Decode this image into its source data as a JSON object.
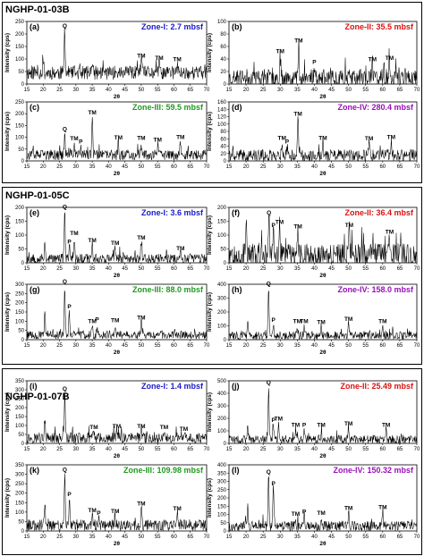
{
  "figure_title": "",
  "chart_data": [
    {
      "id": "a",
      "site": "NGHP-01-03B",
      "panel_label": "(a)",
      "zone": "Zone-I: 2.7 mbsf",
      "zone_color": "#1a1acc",
      "type": "line",
      "xlabel": "2θ",
      "ylabel": "Intensity (cps)",
      "xlim": [
        15,
        70
      ],
      "ylim": [
        0,
        250
      ],
      "xticks": [
        15,
        20,
        25,
        30,
        35,
        40,
        45,
        50,
        55,
        60,
        65,
        70
      ],
      "yticks": [
        0,
        50,
        100,
        150,
        200,
        250
      ],
      "baseline": 45,
      "noise": 28,
      "seed": 11,
      "peaks": [
        {
          "x": 20,
          "y": 100,
          "label": ""
        },
        {
          "x": 26.6,
          "y": 215,
          "label": "Q"
        },
        {
          "x": 35,
          "y": 80,
          "label": ""
        },
        {
          "x": 50,
          "y": 95,
          "label": "TM"
        },
        {
          "x": 55.5,
          "y": 85,
          "label": "TM"
        },
        {
          "x": 61,
          "y": 80,
          "label": "TM"
        }
      ]
    },
    {
      "id": "b",
      "site": "NGHP-01-03B",
      "panel_label": "(b)",
      "zone": "Zone-II: 35.5 mbsf",
      "zone_color": "#dd1111",
      "type": "line",
      "xlabel": "2θ",
      "ylabel": "Intensity (cps)",
      "xlim": [
        15,
        70
      ],
      "ylim": [
        0,
        100
      ],
      "xticks": [
        15,
        20,
        25,
        30,
        35,
        40,
        45,
        50,
        55,
        60,
        65,
        70
      ],
      "yticks": [
        0,
        20,
        40,
        60,
        80,
        100
      ],
      "baseline": 10,
      "noise": 14,
      "seed": 23,
      "peaks": [
        {
          "x": 30,
          "y": 45,
          "label": "TM"
        },
        {
          "x": 35.4,
          "y": 62,
          "label": "TM"
        },
        {
          "x": 40,
          "y": 28,
          "label": "P"
        },
        {
          "x": 57,
          "y": 32,
          "label": "TM"
        },
        {
          "x": 62,
          "y": 34,
          "label": "TM"
        }
      ]
    },
    {
      "id": "c",
      "site": "NGHP-01-03B",
      "panel_label": "(c)",
      "zone": "Zone-III: 59.5 mbsf",
      "zone_color": "#229922",
      "type": "line",
      "xlabel": "2θ",
      "ylabel": "Intensity (cps)",
      "xlim": [
        15,
        70
      ],
      "ylim": [
        0,
        250
      ],
      "xticks": [
        15,
        20,
        25,
        30,
        35,
        40,
        45,
        50,
        55,
        60,
        65,
        70
      ],
      "yticks": [
        0,
        50,
        100,
        150,
        200,
        250
      ],
      "baseline": 25,
      "noise": 22,
      "seed": 37,
      "peaks": [
        {
          "x": 26.6,
          "y": 115,
          "label": "Q"
        },
        {
          "x": 29.5,
          "y": 75,
          "label": "TM"
        },
        {
          "x": 31.5,
          "y": 62,
          "label": "P"
        },
        {
          "x": 35,
          "y": 185,
          "label": "TM"
        },
        {
          "x": 43,
          "y": 80,
          "label": "TM"
        },
        {
          "x": 50,
          "y": 78,
          "label": "TM"
        },
        {
          "x": 55,
          "y": 70,
          "label": "TM"
        },
        {
          "x": 62,
          "y": 82,
          "label": "TM"
        }
      ]
    },
    {
      "id": "d",
      "site": "NGHP-01-03B",
      "panel_label": "(d)",
      "zone": "Zone-IV: 280.4 mbsf",
      "zone_color": "#9911bb",
      "type": "line",
      "xlabel": "2θ",
      "ylabel": "Intensity (cps)",
      "xlim": [
        15,
        70
      ],
      "ylim": [
        0,
        160
      ],
      "xticks": [
        15,
        20,
        25,
        30,
        35,
        40,
        45,
        50,
        55,
        60,
        65,
        70
      ],
      "yticks": [
        0,
        20,
        40,
        60,
        80,
        100,
        120,
        140,
        160
      ],
      "baseline": 15,
      "noise": 16,
      "seed": 41,
      "peaks": [
        {
          "x": 30.5,
          "y": 50,
          "label": "TM"
        },
        {
          "x": 32,
          "y": 40,
          "label": "P"
        },
        {
          "x": 35.2,
          "y": 115,
          "label": "TM"
        },
        {
          "x": 42.5,
          "y": 50,
          "label": "TM"
        },
        {
          "x": 56,
          "y": 48,
          "label": "TM"
        },
        {
          "x": 62.5,
          "y": 52,
          "label": "TM"
        }
      ]
    },
    {
      "id": "e",
      "site": "NGHP-01-05C",
      "panel_label": "(e)",
      "zone": "Zone-I: 3.6 mbsf",
      "zone_color": "#1a1acc",
      "type": "line",
      "xlabel": "2θ",
      "ylabel": "Intensity (cps)",
      "xlim": [
        15,
        70
      ],
      "ylim": [
        0,
        200
      ],
      "xticks": [
        15,
        20,
        25,
        30,
        35,
        40,
        45,
        50,
        55,
        60,
        65,
        70
      ],
      "yticks": [
        0,
        50,
        100,
        150,
        200
      ],
      "baseline": 15,
      "noise": 18,
      "seed": 53,
      "peaks": [
        {
          "x": 20.5,
          "y": 75,
          "label": ""
        },
        {
          "x": 26.6,
          "y": 185,
          "label": "Q"
        },
        {
          "x": 28,
          "y": 60,
          "label": "P"
        },
        {
          "x": 29.5,
          "y": 90,
          "label": "TM"
        },
        {
          "x": 35,
          "y": 65,
          "label": "TM"
        },
        {
          "x": 42,
          "y": 55,
          "label": "TM"
        },
        {
          "x": 50,
          "y": 75,
          "label": "TM"
        },
        {
          "x": 62,
          "y": 35,
          "label": "TM"
        }
      ]
    },
    {
      "id": "f",
      "site": "NGHP-01-05C",
      "panel_label": "(f)",
      "zone": "Zone-II: 36.4 mbsf",
      "zone_color": "#dd1111",
      "type": "line",
      "xlabel": "2θ",
      "ylabel": "Intensity (cps)",
      "xlim": [
        15,
        70
      ],
      "ylim": [
        0,
        200
      ],
      "xticks": [
        15,
        20,
        25,
        30,
        35,
        40,
        45,
        50,
        55,
        60,
        65,
        70
      ],
      "yticks": [
        0,
        50,
        100,
        150,
        200
      ],
      "baseline": 30,
      "noise": 40,
      "seed": 67,
      "peaks": [
        {
          "x": 20,
          "y": 145,
          "label": ""
        },
        {
          "x": 26.7,
          "y": 165,
          "label": "Q"
        },
        {
          "x": 28,
          "y": 120,
          "label": "P"
        },
        {
          "x": 29.8,
          "y": 130,
          "label": "TM"
        },
        {
          "x": 35.2,
          "y": 115,
          "label": "TM"
        },
        {
          "x": 50.2,
          "y": 120,
          "label": "TM"
        },
        {
          "x": 62,
          "y": 95,
          "label": "TM"
        }
      ]
    },
    {
      "id": "g",
      "site": "NGHP-01-05C",
      "panel_label": "(g)",
      "zone": "Zone-III: 88.0 mbsf",
      "zone_color": "#229922",
      "type": "line",
      "xlabel": "2θ",
      "ylabel": "Intensity (cps)",
      "xlim": [
        15,
        70
      ],
      "ylim": [
        0,
        300
      ],
      "xticks": [
        15,
        20,
        25,
        30,
        35,
        40,
        45,
        50,
        55,
        60,
        65,
        70
      ],
      "yticks": [
        0,
        50,
        100,
        150,
        200,
        250,
        300
      ],
      "baseline": 25,
      "noise": 22,
      "seed": 79,
      "peaks": [
        {
          "x": 20.5,
          "y": 140,
          "label": ""
        },
        {
          "x": 26.6,
          "y": 290,
          "label": "Q"
        },
        {
          "x": 28,
          "y": 155,
          "label": "P"
        },
        {
          "x": 35,
          "y": 75,
          "label": "TM"
        },
        {
          "x": 36.5,
          "y": 85,
          "label": "P"
        },
        {
          "x": 42,
          "y": 80,
          "label": "TM"
        },
        {
          "x": 50,
          "y": 95,
          "label": "TM"
        }
      ]
    },
    {
      "id": "h",
      "site": "NGHP-01-05C",
      "panel_label": "(h)",
      "zone": "Zone-IV: 158.0 mbsf",
      "zone_color": "#9911bb",
      "type": "line",
      "xlabel": "2θ",
      "ylabel": "Intensity (cps)",
      "xlim": [
        15,
        70
      ],
      "ylim": [
        0,
        400
      ],
      "xticks": [
        15,
        20,
        25,
        30,
        35,
        40,
        45,
        50,
        55,
        60,
        65,
        70
      ],
      "yticks": [
        0,
        100,
        200,
        300,
        400
      ],
      "baseline": 30,
      "noise": 30,
      "seed": 83,
      "peaks": [
        {
          "x": 20.5,
          "y": 120,
          "label": ""
        },
        {
          "x": 26.6,
          "y": 370,
          "label": "Q"
        },
        {
          "x": 28,
          "y": 110,
          "label": "P"
        },
        {
          "x": 35,
          "y": 100,
          "label": "TM"
        },
        {
          "x": 37,
          "y": 100,
          "label": "TM"
        },
        {
          "x": 42,
          "y": 95,
          "label": "TM"
        },
        {
          "x": 50,
          "y": 115,
          "label": "TM"
        },
        {
          "x": 60,
          "y": 100,
          "label": "TM"
        }
      ]
    },
    {
      "id": "i",
      "site": "NGHP-01-07B",
      "panel_label": "(i)",
      "zone": "Zone-I: 1.4 mbsf",
      "zone_color": "#1a1acc",
      "type": "line",
      "xlabel": "2θ",
      "ylabel": "Intensity (cps)",
      "xlim": [
        15,
        70
      ],
      "ylim": [
        0,
        350
      ],
      "xticks": [
        15,
        20,
        25,
        30,
        35,
        40,
        45,
        50,
        55,
        60,
        65,
        70
      ],
      "yticks": [
        0,
        50,
        100,
        150,
        200,
        250,
        300,
        350
      ],
      "baseline": 30,
      "noise": 30,
      "seed": 97,
      "peaks": [
        {
          "x": 20.5,
          "y": 130,
          "label": ""
        },
        {
          "x": 26.6,
          "y": 280,
          "label": "Q"
        },
        {
          "x": 35.5,
          "y": 65,
          "label": "TM"
        },
        {
          "x": 42.5,
          "y": 70,
          "label": "TM"
        },
        {
          "x": 50,
          "y": 70,
          "label": "TM"
        },
        {
          "x": 57,
          "y": 65,
          "label": "TM"
        },
        {
          "x": 63,
          "y": 55,
          "label": "TM"
        }
      ]
    },
    {
      "id": "j",
      "site": "NGHP-01-07B",
      "panel_label": "(j)",
      "zone": "Zone-II: 25.49 mbsf",
      "zone_color": "#dd1111",
      "type": "line",
      "xlabel": "2θ",
      "ylabel": "Intensity (cps)",
      "xlim": [
        15,
        70
      ],
      "ylim": [
        0,
        500
      ],
      "xticks": [
        15,
        20,
        25,
        30,
        35,
        40,
        45,
        50,
        55,
        60,
        65,
        70
      ],
      "yticks": [
        0,
        100,
        200,
        300,
        400,
        500
      ],
      "baseline": 30,
      "noise": 35,
      "seed": 101,
      "peaks": [
        {
          "x": 20.5,
          "y": 130,
          "label": ""
        },
        {
          "x": 26.6,
          "y": 450,
          "label": "Q"
        },
        {
          "x": 28,
          "y": 150,
          "label": "P"
        },
        {
          "x": 29.5,
          "y": 160,
          "label": "TM"
        },
        {
          "x": 34.5,
          "y": 110,
          "label": "TM"
        },
        {
          "x": 37,
          "y": 110,
          "label": "P"
        },
        {
          "x": 42,
          "y": 110,
          "label": "TM"
        },
        {
          "x": 50,
          "y": 120,
          "label": "TM"
        },
        {
          "x": 61,
          "y": 110,
          "label": "TM"
        }
      ]
    },
    {
      "id": "k",
      "site": "NGHP-01-07B",
      "panel_label": "(k)",
      "zone": "Zone-III: 109.98 mbsf",
      "zone_color": "#229922",
      "type": "line",
      "xlabel": "2θ",
      "ylabel": "Intensity (cps)",
      "xlim": [
        15,
        70
      ],
      "ylim": [
        0,
        350
      ],
      "xticks": [
        15,
        20,
        25,
        30,
        35,
        40,
        45,
        50,
        55,
        60,
        65,
        70
      ],
      "yticks": [
        0,
        50,
        100,
        150,
        200,
        250,
        300,
        350
      ],
      "baseline": 30,
      "noise": 30,
      "seed": 113,
      "peaks": [
        {
          "x": 20.5,
          "y": 160,
          "label": ""
        },
        {
          "x": 26.6,
          "y": 300,
          "label": "Q"
        },
        {
          "x": 28,
          "y": 170,
          "label": "P"
        },
        {
          "x": 35,
          "y": 85,
          "label": "TM"
        },
        {
          "x": 37,
          "y": 70,
          "label": "P"
        },
        {
          "x": 42,
          "y": 80,
          "label": "TM"
        },
        {
          "x": 50,
          "y": 120,
          "label": "TM"
        },
        {
          "x": 61,
          "y": 95,
          "label": "TM"
        }
      ]
    },
    {
      "id": "l",
      "site": "NGHP-01-07B",
      "panel_label": "(l)",
      "zone": "Zone-IV: 150.32 mbsf",
      "zone_color": "#9911bb",
      "type": "line",
      "xlabel": "2θ",
      "ylabel": "Intensity (cps)",
      "xlim": [
        15,
        70
      ],
      "ylim": [
        0,
        400
      ],
      "xticks": [
        15,
        20,
        25,
        30,
        35,
        40,
        45,
        50,
        55,
        60,
        65,
        70
      ],
      "yticks": [
        0,
        50,
        100,
        150,
        200,
        250,
        300,
        350,
        400
      ],
      "baseline": 30,
      "noise": 30,
      "seed": 127,
      "peaks": [
        {
          "x": 20.5,
          "y": 150,
          "label": ""
        },
        {
          "x": 26.6,
          "y": 330,
          "label": "Q"
        },
        {
          "x": 28,
          "y": 260,
          "label": "P"
        },
        {
          "x": 34.5,
          "y": 75,
          "label": "TM"
        },
        {
          "x": 37,
          "y": 90,
          "label": "P"
        },
        {
          "x": 42,
          "y": 80,
          "label": "TM"
        },
        {
          "x": 50,
          "y": 110,
          "label": "TM"
        },
        {
          "x": 60,
          "y": 115,
          "label": "TM"
        }
      ]
    }
  ]
}
